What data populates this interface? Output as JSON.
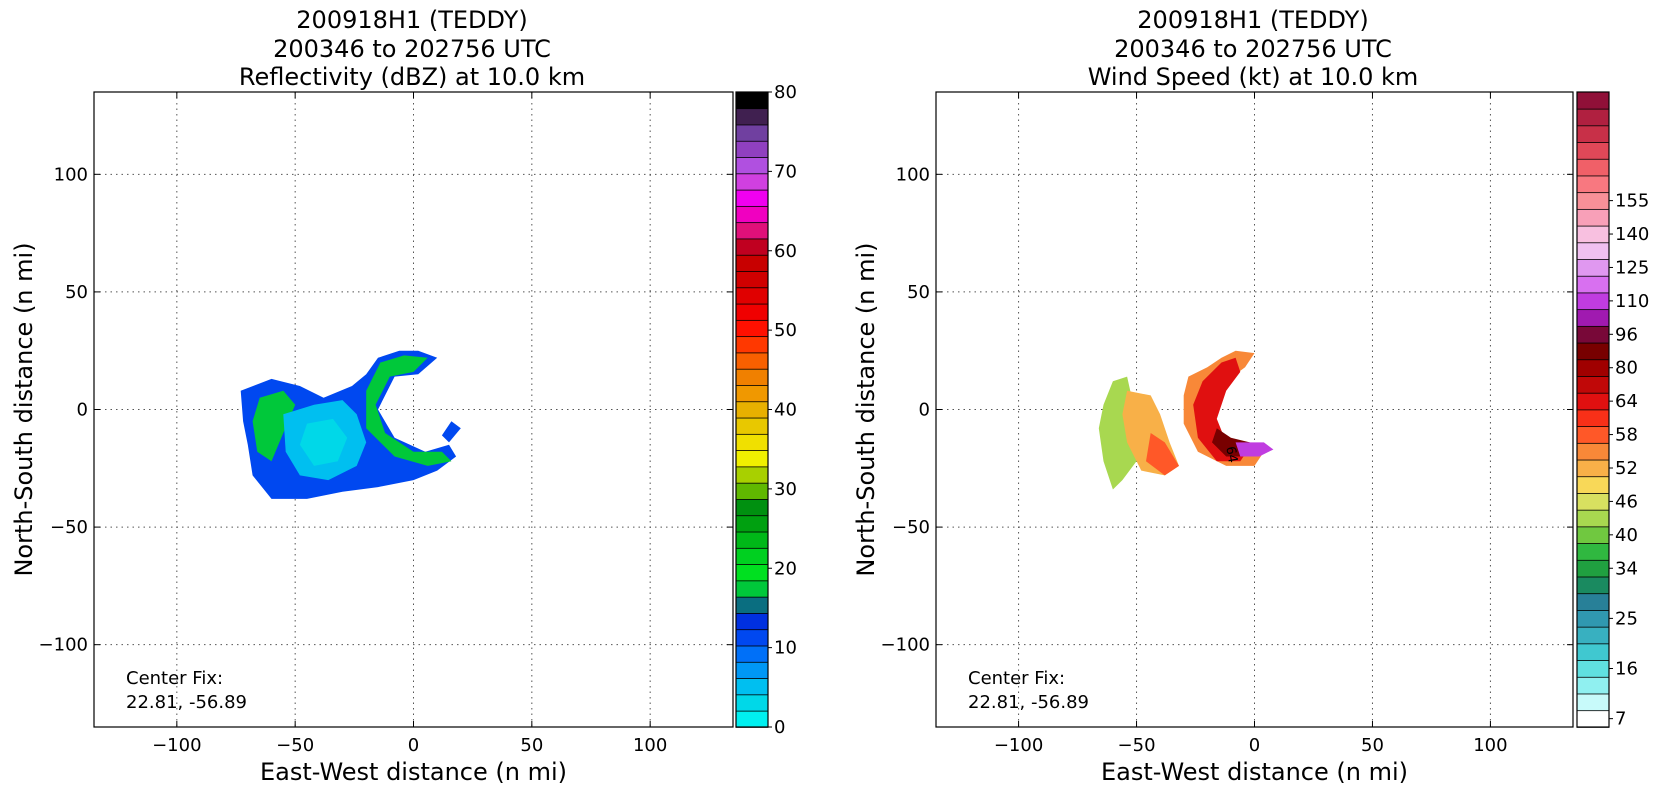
{
  "chart_data": [
    {
      "type": "heatmap",
      "title_lines": [
        "200918H1 (TEDDY)",
        "200346 to 202756 UTC",
        "Reflectivity (dBZ) at 10.0 km"
      ],
      "xlabel": "East-West distance (n mi)",
      "ylabel": "North-South distance (n mi)",
      "xlim": [
        -135,
        135
      ],
      "ylim": [
        -135,
        135
      ],
      "xticks": [
        -100,
        -50,
        0,
        50,
        100
      ],
      "yticks": [
        -100,
        -50,
        0,
        50,
        100
      ],
      "grid": true,
      "annotation": {
        "line1": "Center Fix:",
        "line2": "22.81, -56.89"
      },
      "colorbar": {
        "min": 0,
        "max": 80,
        "tick_labels": [
          "0",
          "10",
          "20",
          "30",
          "40",
          "50",
          "60",
          "70",
          "80"
        ],
        "tick_values": [
          0,
          10,
          20,
          30,
          40,
          50,
          60,
          70,
          80
        ],
        "colors": [
          "#00f0f0",
          "#00d8e8",
          "#00bff0",
          "#0097f5",
          "#0070f8",
          "#0048f0",
          "#0030e0",
          "#0a6e80",
          "#00c83a",
          "#00e020",
          "#00d020",
          "#00b818",
          "#00a010",
          "#009010",
          "#60b800",
          "#a8d000",
          "#f0f000",
          "#f0e000",
          "#e8c800",
          "#e8b000",
          "#f09800",
          "#f08000",
          "#f86000",
          "#ff3800",
          "#ff1000",
          "#f00000",
          "#e00000",
          "#d00000",
          "#c80000",
          "#c00020",
          "#e0107a",
          "#f000c0",
          "#f000f0",
          "#d040e0",
          "#b050e0",
          "#9040c0",
          "#7040a0",
          "#402050",
          "#000000"
        ]
      },
      "echo_regions": [
        {
          "color": "#0048f0",
          "points": [
            [
              -73,
              8
            ],
            [
              -60,
              13
            ],
            [
              -48,
              10
            ],
            [
              -38,
              5
            ],
            [
              -26,
              10
            ],
            [
              -20,
              15
            ],
            [
              -15,
              22
            ],
            [
              -6,
              25
            ],
            [
              2,
              25
            ],
            [
              10,
              22
            ],
            [
              2,
              15
            ],
            [
              -8,
              14
            ],
            [
              -15,
              0
            ],
            [
              -8,
              -12
            ],
            [
              5,
              -18
            ],
            [
              15,
              -15
            ],
            [
              18,
              -20
            ],
            [
              10,
              -26
            ],
            [
              0,
              -30
            ],
            [
              -15,
              -33
            ],
            [
              -30,
              -35
            ],
            [
              -45,
              -38
            ],
            [
              -60,
              -38
            ],
            [
              -68,
              -28
            ],
            [
              -70,
              -15
            ],
            [
              -72,
              -5
            ]
          ]
        },
        {
          "color": "#00c83a",
          "points": [
            [
              -65,
              5
            ],
            [
              -55,
              8
            ],
            [
              -50,
              2
            ],
            [
              -55,
              -10
            ],
            [
              -60,
              -22
            ],
            [
              -66,
              -18
            ],
            [
              -68,
              -5
            ]
          ]
        },
        {
          "color": "#00c83a",
          "points": [
            [
              -14,
              20
            ],
            [
              -4,
              23
            ],
            [
              6,
              22
            ],
            [
              0,
              16
            ],
            [
              -10,
              14
            ],
            [
              -16,
              2
            ],
            [
              -12,
              -10
            ],
            [
              0,
              -18
            ],
            [
              12,
              -18
            ],
            [
              16,
              -22
            ],
            [
              6,
              -24
            ],
            [
              -8,
              -20
            ],
            [
              -20,
              -8
            ],
            [
              -20,
              8
            ]
          ]
        },
        {
          "color": "#00bff0",
          "points": [
            [
              -55,
              -2
            ],
            [
              -42,
              2
            ],
            [
              -30,
              4
            ],
            [
              -24,
              -2
            ],
            [
              -20,
              -14
            ],
            [
              -24,
              -24
            ],
            [
              -36,
              -30
            ],
            [
              -48,
              -28
            ],
            [
              -54,
              -18
            ]
          ]
        },
        {
          "color": "#00d8e8",
          "points": [
            [
              -45,
              -6
            ],
            [
              -34,
              -4
            ],
            [
              -28,
              -12
            ],
            [
              -32,
              -22
            ],
            [
              -42,
              -24
            ],
            [
              -48,
              -15
            ]
          ]
        },
        {
          "color": "#0048f0",
          "points": [
            [
              16,
              -5
            ],
            [
              20,
              -8
            ],
            [
              15,
              -14
            ],
            [
              12,
              -11
            ]
          ]
        }
      ]
    },
    {
      "type": "heatmap",
      "title_lines": [
        "200918H1 (TEDDY)",
        "200346 to 202756 UTC",
        "Wind Speed (kt) at 10.0 km"
      ],
      "xlabel": "East-West distance (n mi)",
      "ylabel": "North-South distance (n mi)",
      "xlim": [
        -135,
        135
      ],
      "ylim": [
        -135,
        135
      ],
      "xticks": [
        -100,
        -50,
        0,
        50,
        100
      ],
      "yticks": [
        -100,
        -50,
        0,
        50,
        100
      ],
      "grid": true,
      "annotation": {
        "line1": "Center Fix:",
        "line2": "22.81, -56.89"
      },
      "contour_label": "64",
      "colorbar": {
        "tick_labels": [
          "7",
          "16",
          "25",
          "34",
          "40",
          "46",
          "52",
          "58",
          "64",
          "80",
          "96",
          "110",
          "125",
          "140",
          "155"
        ],
        "tick_bin_index": [
          0,
          3,
          6,
          9,
          11,
          13,
          15,
          17,
          19,
          21,
          23,
          25,
          27,
          29,
          31
        ],
        "colors": [
          "#ffffff",
          "#c8fafa",
          "#90f0f0",
          "#60e0e0",
          "#40c8d0",
          "#38b0c0",
          "#3098b0",
          "#288098",
          "#1a8a60",
          "#20a040",
          "#30b840",
          "#70c840",
          "#a8d850",
          "#d8e060",
          "#f8d858",
          "#f8b048",
          "#f88838",
          "#ff5828",
          "#f83018",
          "#e01010",
          "#c00808",
          "#a00000",
          "#780000",
          "#780838",
          "#a01ab0",
          "#c03ce0",
          "#d870f0",
          "#e098f0",
          "#f0c0f0",
          "#f8c0e0",
          "#f8a0b8",
          "#f89098",
          "#f87880",
          "#f06068",
          "#e04858",
          "#c83048",
          "#b02040",
          "#901038"
        ]
      },
      "echo_regions": [
        {
          "color": "#a8d850",
          "points": [
            [
              -60,
              12
            ],
            [
              -54,
              14
            ],
            [
              -52,
              5
            ],
            [
              -48,
              0
            ],
            [
              -46,
              -10
            ],
            [
              -50,
              -22
            ],
            [
              -56,
              -30
            ],
            [
              -60,
              -34
            ],
            [
              -64,
              -22
            ],
            [
              -66,
              -8
            ],
            [
              -64,
              2
            ]
          ]
        },
        {
          "color": "#f8b048",
          "points": [
            [
              -54,
              8
            ],
            [
              -44,
              6
            ],
            [
              -40,
              -2
            ],
            [
              -36,
              -14
            ],
            [
              -32,
              -24
            ],
            [
              -38,
              -28
            ],
            [
              -48,
              -26
            ],
            [
              -54,
              -14
            ],
            [
              -56,
              -2
            ]
          ]
        },
        {
          "color": "#ff5828",
          "points": [
            [
              -44,
              -10
            ],
            [
              -38,
              -14
            ],
            [
              -32,
              -24
            ],
            [
              -38,
              -28
            ],
            [
              -46,
              -22
            ]
          ]
        },
        {
          "color": "#f88838",
          "points": [
            [
              -28,
              14
            ],
            [
              -20,
              18
            ],
            [
              -14,
              22
            ],
            [
              -8,
              25
            ],
            [
              0,
              24
            ],
            [
              -4,
              18
            ],
            [
              -12,
              12
            ],
            [
              -18,
              0
            ],
            [
              -16,
              -12
            ],
            [
              -8,
              -18
            ],
            [
              4,
              -18
            ],
            [
              0,
              -24
            ],
            [
              -12,
              -24
            ],
            [
              -24,
              -18
            ],
            [
              -30,
              -6
            ],
            [
              -30,
              6
            ]
          ]
        },
        {
          "color": "#e01010",
          "points": [
            [
              -22,
              12
            ],
            [
              -14,
              20
            ],
            [
              -8,
              22
            ],
            [
              -6,
              16
            ],
            [
              -12,
              8
            ],
            [
              -16,
              -4
            ],
            [
              -12,
              -14
            ],
            [
              -2,
              -16
            ],
            [
              -6,
              -22
            ],
            [
              -16,
              -22
            ],
            [
              -24,
              -12
            ],
            [
              -26,
              2
            ]
          ]
        },
        {
          "color": "#780000",
          "points": [
            [
              -16,
              -8
            ],
            [
              -10,
              -12
            ],
            [
              -2,
              -14
            ],
            [
              -4,
              -20
            ],
            [
              -12,
              -20
            ],
            [
              -18,
              -14
            ]
          ]
        },
        {
          "color": "#c03ce0",
          "points": [
            [
              -8,
              -14
            ],
            [
              4,
              -14
            ],
            [
              8,
              -17
            ],
            [
              2,
              -20
            ],
            [
              -6,
              -20
            ]
          ]
        }
      ]
    }
  ]
}
